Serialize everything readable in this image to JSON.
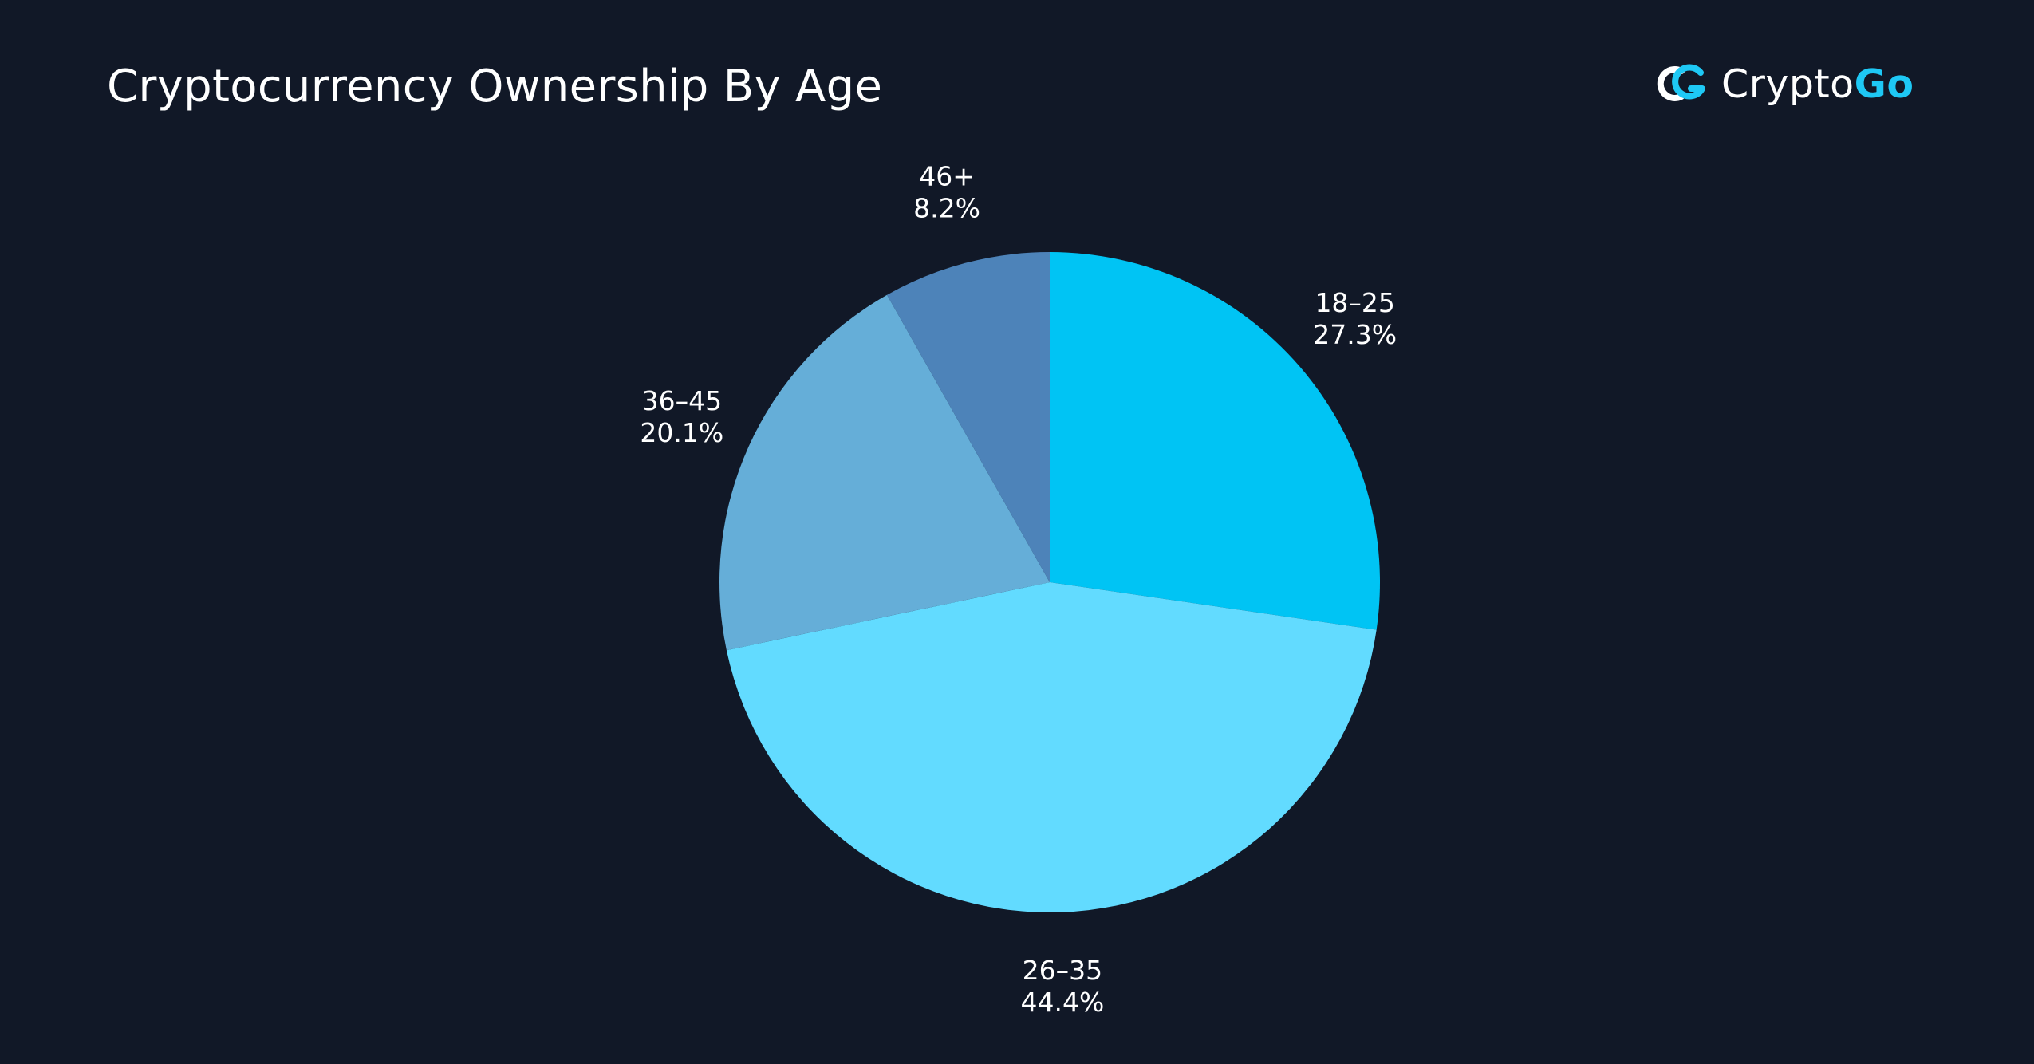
{
  "header": {
    "title": "Cryptocurrency Ownership By Age"
  },
  "brand": {
    "name_part1": "Crypto",
    "name_part2": "Go",
    "logo_icon": "cryptogo-logo-icon",
    "accent_color": "#1ec8f5"
  },
  "colors": {
    "background": "#111827",
    "text": "#ffffff"
  },
  "chart_data": {
    "type": "pie",
    "title": "Cryptocurrency Ownership By Age",
    "start_angle": "12 o'clock",
    "direction": "clockwise",
    "legend": "none",
    "slices": [
      {
        "label": "18–25",
        "value": 27.3,
        "value_label": "27.3%",
        "color": "#00c4f4"
      },
      {
        "label": "26–35",
        "value": 44.4,
        "value_label": "44.4%",
        "color": "#62dbff"
      },
      {
        "label": "36–45",
        "value": 20.1,
        "value_label": "20.1%",
        "color": "#65aed8"
      },
      {
        "label": "46+",
        "value": 8.2,
        "value_label": "8.2%",
        "color": "#4d83b9"
      }
    ]
  }
}
